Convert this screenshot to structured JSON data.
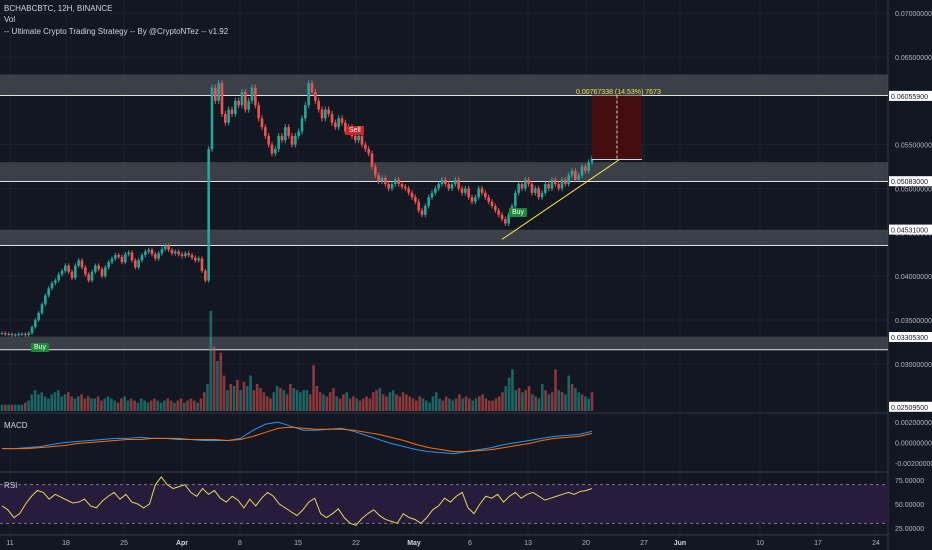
{
  "header": {
    "symbol_line": "BCHABCBTC, 12H, BINANCE",
    "vol_label": "Vol",
    "strategy_label": "-- Ultimate Crypto Trading Strategy -- By @CryptoNTez -- v1.92"
  },
  "signals": {
    "buy1": "Buy",
    "sell": "Sell",
    "buy2": "Buy"
  },
  "projection_label": "0.00767338 (14.53%) 7673",
  "panes": {
    "macd_label": "MACD",
    "rsi_label": "RSI"
  },
  "chart_data": [
    {
      "type": "candlestick",
      "title": "BCHABCBTC, 12H, BINANCE",
      "x_ticks": [
        "11",
        "18",
        "25",
        "Apr",
        "8",
        "15",
        "22",
        "May",
        "6",
        "13",
        "20",
        "27",
        "Jun",
        "10",
        "17",
        "24"
      ],
      "y_ticks": [
        "0.07000000",
        "0.06500000",
        "0.05500000",
        "0.05000000",
        "0.04500000",
        "0.04000000",
        "0.03500000",
        "0.03000000"
      ],
      "ylim": [
        0.0245,
        0.0715
      ],
      "price_labels": [
        "0.06055900",
        "0.05083000",
        "0.04531000",
        "0.03305300",
        "0.02509500"
      ],
      "zones": [
        [
          0.0606,
          0.063
        ],
        [
          0.0508,
          0.053
        ],
        [
          0.0435,
          0.0453
        ],
        [
          0.0316,
          0.0331
        ]
      ],
      "close": [
        0.0335,
        0.0334,
        0.0334,
        0.0333,
        0.0333,
        0.0334,
        0.0334,
        0.0333,
        0.0335,
        0.0342,
        0.035,
        0.0358,
        0.0368,
        0.0378,
        0.0386,
        0.0392,
        0.0395,
        0.0402,
        0.0406,
        0.0412,
        0.0405,
        0.0398,
        0.0412,
        0.0418,
        0.041,
        0.0402,
        0.0395,
        0.0405,
        0.0412,
        0.0408,
        0.04,
        0.041,
        0.0416,
        0.042,
        0.0424,
        0.0422,
        0.0416,
        0.0425,
        0.0427,
        0.0418,
        0.041,
        0.0418,
        0.0424,
        0.0428,
        0.043,
        0.0425,
        0.042,
        0.0426,
        0.0431,
        0.0435,
        0.043,
        0.0426,
        0.0428,
        0.0425,
        0.0423,
        0.0426,
        0.0424,
        0.0421,
        0.0418,
        0.042,
        0.0406,
        0.0395,
        0.0545,
        0.0615,
        0.06,
        0.062,
        0.0585,
        0.0575,
        0.059,
        0.0585,
        0.06,
        0.0595,
        0.061,
        0.059,
        0.06,
        0.0615,
        0.0595,
        0.058,
        0.057,
        0.056,
        0.055,
        0.054,
        0.0545,
        0.056,
        0.0555,
        0.057,
        0.056,
        0.055,
        0.056,
        0.0565,
        0.058,
        0.0595,
        0.062,
        0.061,
        0.06,
        0.059,
        0.058,
        0.059,
        0.0585,
        0.0575,
        0.057,
        0.058,
        0.0575,
        0.0565,
        0.057,
        0.056,
        0.0555,
        0.056,
        0.055,
        0.0545,
        0.054,
        0.0525,
        0.0515,
        0.0508,
        0.0512,
        0.0505,
        0.05,
        0.0505,
        0.051,
        0.0505,
        0.0502,
        0.05,
        0.0495,
        0.049,
        0.0485,
        0.0475,
        0.047,
        0.048,
        0.049,
        0.0495,
        0.05,
        0.0505,
        0.051,
        0.0505,
        0.05,
        0.0505,
        0.051,
        0.05,
        0.0495,
        0.05,
        0.049,
        0.0485,
        0.049,
        0.05,
        0.0495,
        0.049,
        0.0485,
        0.048,
        0.0475,
        0.047,
        0.0465,
        0.046,
        0.047,
        0.048,
        0.0495,
        0.0505,
        0.05,
        0.051,
        0.0505,
        0.0495,
        0.05,
        0.049,
        0.0495,
        0.0505,
        0.05,
        0.051,
        0.0505,
        0.05,
        0.051,
        0.0505,
        0.0515,
        0.052,
        0.051,
        0.0515,
        0.0525,
        0.052,
        0.053,
        0.0535
      ],
      "annotations": [
        "Buy",
        "Sell",
        "Buy",
        "0.00767338 (14.53%) 7673"
      ]
    },
    {
      "type": "bar",
      "title": "Vol",
      "values": [
        3,
        3,
        3,
        3,
        3,
        3,
        3,
        4,
        5,
        8,
        10,
        8,
        9,
        7,
        6,
        8,
        9,
        10,
        7,
        8,
        9,
        7,
        6,
        7,
        8,
        6,
        7,
        6,
        6,
        7,
        5,
        6,
        7,
        6,
        5,
        4,
        6,
        7,
        5,
        6,
        5,
        4,
        6,
        5,
        4,
        5,
        6,
        5,
        4,
        5,
        6,
        5,
        4,
        5,
        6,
        4,
        5,
        6,
        5,
        4,
        6,
        9,
        13,
        48,
        31,
        24,
        28,
        17,
        10,
        13,
        12,
        15,
        10,
        14,
        12,
        17,
        10,
        13,
        11,
        9,
        7,
        6,
        9,
        12,
        11,
        10,
        8,
        13,
        11,
        10,
        9,
        10,
        10,
        8,
        22,
        12,
        9,
        8,
        7,
        9,
        11,
        7,
        6,
        8,
        9,
        6,
        7,
        6,
        5,
        6,
        7,
        6,
        9,
        10,
        11,
        8,
        7,
        9,
        10,
        8,
        7,
        9,
        8,
        7,
        6,
        5,
        7,
        6,
        5,
        4,
        7,
        9,
        6,
        5,
        7,
        6,
        5,
        6,
        8,
        6,
        7,
        6,
        5,
        6,
        7,
        8,
        6,
        5,
        5,
        6,
        7,
        9,
        12,
        16,
        20,
        10,
        11,
        9,
        10,
        12,
        8,
        7,
        6,
        13,
        10,
        8,
        9,
        20,
        10,
        9,
        8,
        17,
        13,
        11,
        9,
        8,
        7,
        6,
        9
      ]
    },
    {
      "type": "line",
      "title": "MACD",
      "y_ticks": [
        "0.00200000",
        "0.00000000",
        "-0.00200000"
      ],
      "ylim": [
        -0.0027,
        0.0027
      ],
      "series": [
        {
          "values": [
            -0.0006,
            -0.0006,
            -0.0005,
            -0.0004,
            -0.0002,
            0.0,
            0.0001,
            0.0002,
            0.0003,
            0.0004,
            0.0004,
            0.0005,
            0.0004,
            0.0004,
            0.0003,
            0.0003,
            0.0002,
            0.0002,
            0.0002,
            0.0004,
            0.0012,
            0.0018,
            0.002,
            0.0016,
            0.0012,
            0.0012,
            0.0013,
            0.0014,
            0.0011,
            0.0007,
            0.0003,
            -0.0001,
            -0.0004,
            -0.0007,
            -0.0009,
            -0.001,
            -0.0011,
            -0.0009,
            -0.0007,
            -0.0005,
            -0.0002,
            0.0,
            0.0002,
            0.0004,
            0.0006,
            0.0007,
            0.0008,
            0.0011
          ]
        },
        {
          "values": [
            -0.0006,
            -0.0006,
            -0.0006,
            -0.0005,
            -0.0004,
            -0.0003,
            -0.0001,
            0.0,
            0.0001,
            0.0002,
            0.0003,
            0.0003,
            0.0004,
            0.0004,
            0.0004,
            0.0003,
            0.0003,
            0.0003,
            0.0002,
            0.0003,
            0.0006,
            0.001,
            0.0014,
            0.0015,
            0.0014,
            0.0013,
            0.0013,
            0.0013,
            0.0012,
            0.001,
            0.0008,
            0.0005,
            0.0002,
            -0.0002,
            -0.0005,
            -0.0007,
            -0.0009,
            -0.0009,
            -0.0008,
            -0.0007,
            -0.0005,
            -0.0003,
            -0.0001,
            0.0002,
            0.0004,
            0.0005,
            0.0006,
            0.0009
          ]
        }
      ]
    },
    {
      "type": "line",
      "title": "RSI",
      "y_ticks": [
        "75.00000",
        "50.00000",
        "25.00000"
      ],
      "ylim": [
        20,
        80
      ],
      "series": [
        {
          "values": [
            48,
            44,
            36,
            40,
            50,
            58,
            64,
            62,
            55,
            60,
            57,
            54,
            51,
            52,
            55,
            48,
            46,
            53,
            58,
            62,
            55,
            60,
            52,
            50,
            46,
            50,
            70,
            78,
            70,
            66,
            68,
            70,
            62,
            58,
            66,
            60,
            64,
            56,
            52,
            58,
            54,
            46,
            55,
            48,
            56,
            62,
            58,
            50,
            46,
            42,
            38,
            44,
            52,
            56,
            40,
            36,
            40,
            45,
            36,
            30,
            28,
            35,
            40,
            44,
            38,
            34,
            32,
            30,
            40,
            36,
            34,
            30,
            36,
            44,
            48,
            56,
            52,
            58,
            62,
            46,
            40,
            50,
            58,
            56,
            60,
            52,
            58,
            62,
            56,
            60,
            62,
            58,
            54,
            56,
            58,
            60,
            62,
            60,
            63,
            64,
            66
          ]
        }
      ]
    }
  ]
}
